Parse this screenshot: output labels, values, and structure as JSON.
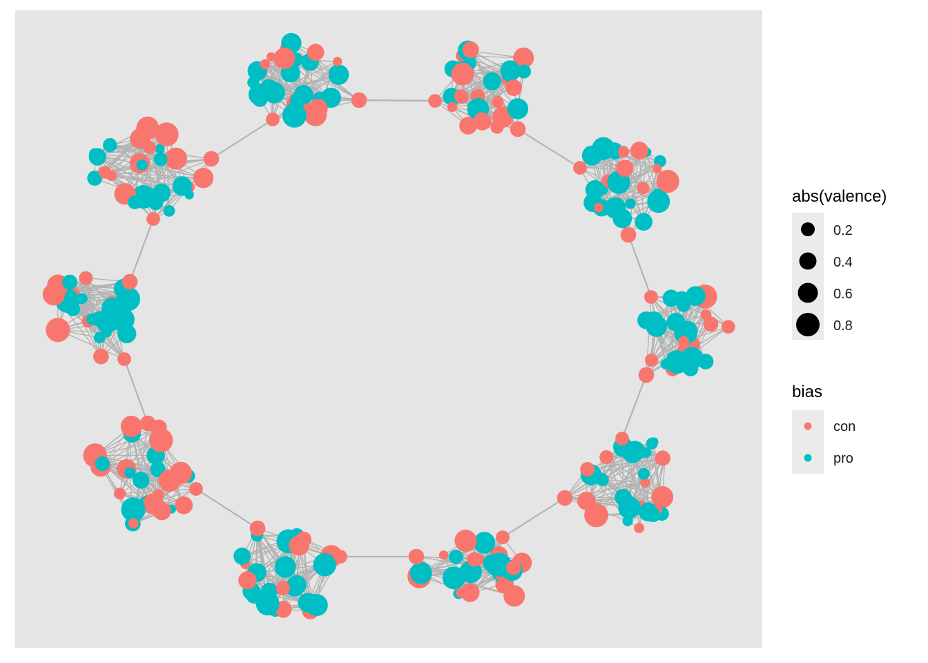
{
  "colors": {
    "panel_bg": "#E5E5E5",
    "edge": "#B3B3B3",
    "con": "#F8766D",
    "pro": "#00BFC4",
    "legend_key_bg": "#EBEBEB",
    "size_key_fill": "#000000"
  },
  "legend": {
    "size": {
      "title": "abs(valence)",
      "entries": [
        "0.2",
        "0.4",
        "0.6",
        "0.8"
      ],
      "values": [
        0.2,
        0.4,
        0.6,
        0.8
      ]
    },
    "color": {
      "title": "bias",
      "entries": [
        {
          "label": "con",
          "color_key": "con"
        },
        {
          "label": "pro",
          "color_key": "pro"
        }
      ]
    }
  },
  "network": {
    "cluster_count": 10,
    "topology": "ring of clusters"
  }
}
